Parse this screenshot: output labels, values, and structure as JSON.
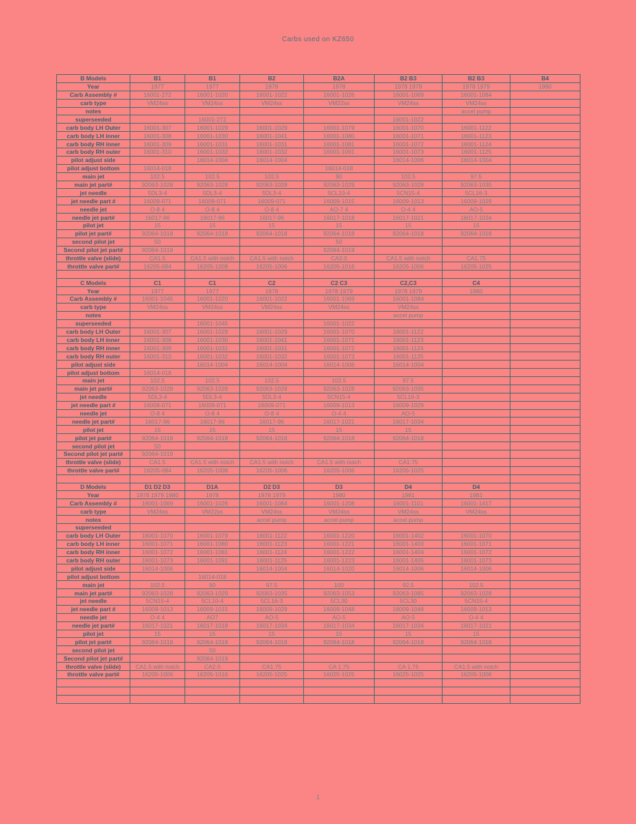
{
  "page": {
    "title": "Carbs used on KZ650",
    "page_number": "1"
  },
  "colors": {
    "page_background": "#fb8585",
    "grid_border": "#3c6c6c",
    "label_ink": "#35606c",
    "value_ink": "#6e8184"
  },
  "sections": [
    {
      "name": "B Models",
      "columns": [
        "B1",
        "B1",
        "B2",
        "B2A",
        "B2 B3",
        "B2 B3",
        "B4"
      ],
      "rows": [
        {
          "label": "Year",
          "values": [
            "1977",
            "1977",
            "1978",
            "1978",
            "1978 1979",
            "1978 1979",
            "1980"
          ]
        },
        {
          "label": "Carb Assembly #",
          "values": [
            "16001-272",
            "16001-1020",
            "16001-1022",
            "16001-1026",
            "16001-1069",
            "16001-1084",
            ""
          ]
        },
        {
          "label": "carb type",
          "values": [
            "VM24ss",
            "VM24ss",
            "VM24ss",
            "VM22ss",
            "VM24ss",
            "VM24ss",
            ""
          ]
        },
        {
          "label": "notes",
          "values": [
            "",
            "",
            "",
            "",
            "",
            "accel pump",
            ""
          ]
        },
        {
          "label": "superseeded",
          "values": [
            "",
            "16001-272",
            "",
            "",
            "16001-1022",
            "",
            ""
          ]
        },
        {
          "label": "carb body LH Outer",
          "values": [
            "16001-307",
            "16001-1029",
            "16001-1029",
            "16001-1079",
            "16001-1070",
            "16001-1122",
            ""
          ]
        },
        {
          "label": "carb body LH inner",
          "values": [
            "16001-308",
            "16001-1030",
            "16001-1041",
            "16001-1080",
            "16001-1071",
            "16001-1123",
            ""
          ]
        },
        {
          "label": "carb body RH inner",
          "values": [
            "16001-309",
            "16001-1031",
            "16001-1031",
            "16001-1081",
            "16001-1072",
            "16001-1124",
            ""
          ]
        },
        {
          "label": "carb body RH outer",
          "values": [
            "16001-310",
            "16001-1032",
            "16001-1032",
            "16001-1091",
            "16001-1073",
            "16001-1125",
            ""
          ]
        },
        {
          "label": "pilot adjust side",
          "values": [
            "",
            "16014-1004",
            "16014-1004",
            "",
            "16014-1006",
            "16014-1004",
            ""
          ]
        },
        {
          "label": "pilot adjust bottom",
          "values": [
            "16014-018",
            "",
            "",
            "16014-018",
            "",
            "",
            ""
          ]
        },
        {
          "label": "main jet",
          "values": [
            "102.5",
            "102.5",
            "102.5",
            "90",
            "102.5",
            "97.5",
            ""
          ]
        },
        {
          "label": "main jet part#",
          "values": [
            "92063-1028",
            "92063-1028",
            "92063-1028",
            "92063-1029",
            "92063-1028",
            "92063-1035",
            ""
          ]
        },
        {
          "label": "jet needle",
          "values": [
            "5DL3-4",
            "5DL3-4",
            "5DL3-4",
            "5CL10-4",
            "5CN15-4",
            "5CL16-3",
            ""
          ]
        },
        {
          "label": "jet needle part #",
          "values": [
            "16009-071",
            "16009-071",
            "16009-071",
            "16009-1015",
            "16009-1013",
            "16009-1029",
            ""
          ]
        },
        {
          "label": "needle jet",
          "values": [
            "O-8 4",
            "O-8 4",
            "O-8 4",
            "AO-7 4",
            "O-4 4",
            "AO-5",
            ""
          ]
        },
        {
          "label": "needle jet part#",
          "values": [
            "16017-96",
            "16017-96",
            "16017-96",
            "16017-1018",
            "16017-1021",
            "16017-1034",
            ""
          ]
        },
        {
          "label": "pilot jet",
          "values": [
            "15",
            "15",
            "15",
            "15",
            "15",
            "15",
            ""
          ]
        },
        {
          "label": "pilot jet part#",
          "values": [
            "92064-1018",
            "92064-1018",
            "92064-1018",
            "92064-1018",
            "92064-1018",
            "92064-1018",
            ""
          ]
        },
        {
          "label": "second pilot jet",
          "values": [
            "50",
            "",
            "",
            "50",
            "",
            "",
            ""
          ]
        },
        {
          "label": "Second pilot jet part#",
          "values": [
            "92064-1019",
            "",
            "",
            "92064-1019",
            "",
            "",
            ""
          ]
        },
        {
          "label": "throttle valve (slide)",
          "values": [
            "CA1.5",
            "CA1.5 with notch",
            "CA1.5 with notch",
            "CA2.0",
            "CA1.5 with notch",
            "CA1.75",
            ""
          ]
        },
        {
          "label": "throttle valve part#",
          "values": [
            "16205-084",
            "16205-1008",
            "16205-1006",
            "16205-1016",
            "16205-1006",
            "16205-1025",
            ""
          ]
        }
      ]
    },
    {
      "name": "C Models",
      "columns": [
        "C1",
        "C1",
        "C2",
        "C2 C3",
        "C2,C3",
        "C4",
        ""
      ],
      "rows": [
        {
          "label": "Year",
          "values": [
            "1977",
            "1977",
            "1978",
            "1978 1979",
            "1978 1979",
            "1980",
            ""
          ]
        },
        {
          "label": "Carb Assembly #",
          "values": [
            "16001-1045",
            "16001-1020",
            "16001-1022",
            "16001-1069",
            "16001-1084",
            "",
            ""
          ]
        },
        {
          "label": "carb type",
          "values": [
            "VM24ss",
            "VM24ss",
            "VM24ss",
            "VM24ss",
            "VM24ss",
            "",
            ""
          ]
        },
        {
          "label": "notes",
          "values": [
            "",
            "",
            "",
            "",
            "accel pump",
            "",
            ""
          ]
        },
        {
          "label": "superseeded",
          "values": [
            "",
            "16001-1045",
            "",
            "16001-1022",
            "",
            "",
            ""
          ]
        },
        {
          "label": "carb body LH Outer",
          "values": [
            "16001-307",
            "16001-1029",
            "16001-1029",
            "16001-1070",
            "16001-1122",
            "",
            ""
          ]
        },
        {
          "label": "carb body LH inner",
          "values": [
            "16001-308",
            "16001-1030",
            "16001-1041",
            "16001-1071",
            "16001-1123",
            "",
            ""
          ]
        },
        {
          "label": "carb body RH inner",
          "values": [
            "16001-309",
            "16001-1031",
            "16001-1031",
            "16001-1072",
            "16001-1124",
            "",
            ""
          ]
        },
        {
          "label": "carb body RH outer",
          "values": [
            "16001-310",
            "16001-1032",
            "16001-1032",
            "16001-1073",
            "16001-1125",
            "",
            ""
          ]
        },
        {
          "label": "pilot adjust side",
          "values": [
            "",
            "16014-1004",
            "16014-1004",
            "16014-1006",
            "16014-1004",
            "",
            ""
          ]
        },
        {
          "label": "pilot adjust bottom",
          "values": [
            "16014-018",
            "",
            "",
            "",
            "",
            "",
            ""
          ]
        },
        {
          "label": "main jet",
          "values": [
            "102.5",
            "102.5",
            "102.5",
            "102.5",
            "97.5",
            "",
            ""
          ]
        },
        {
          "label": "main jet part#",
          "values": [
            "92063-1028",
            "92063-1028",
            "92063-1028",
            "92063-1028",
            "92063-1035",
            "",
            ""
          ]
        },
        {
          "label": "jet needle",
          "values": [
            "5DL3-4",
            "5DL3-4",
            "5DL3-4",
            "5CN15-4",
            "5CL16-3",
            "",
            ""
          ]
        },
        {
          "label": "jet needle part #",
          "values": [
            "16009-071",
            "16009-071",
            "16009-071",
            "16009-1013",
            "16009-1029",
            "",
            ""
          ]
        },
        {
          "label": "needle jet",
          "values": [
            "O-8 4",
            "O-8 4",
            "O-8 4",
            "O-4 4",
            "AO-5",
            "",
            ""
          ]
        },
        {
          "label": "needle jet part#",
          "values": [
            "16017-96",
            "16017-96",
            "16017-96",
            "16017-1021",
            "16017-1034",
            "",
            ""
          ]
        },
        {
          "label": "pilot jet",
          "values": [
            "15",
            "15",
            "15",
            "15",
            "15",
            "",
            ""
          ]
        },
        {
          "label": "pilot jet part#",
          "values": [
            "92064-1018",
            "92064-1018",
            "92064-1018",
            "92064-1018",
            "92064-1018",
            "",
            ""
          ]
        },
        {
          "label": "second pilot jet",
          "values": [
            "50",
            "",
            "",
            "",
            "",
            "",
            ""
          ]
        },
        {
          "label": "Second pilot jet part#",
          "values": [
            "92064-1019",
            "",
            "",
            "",
            "",
            "",
            ""
          ]
        },
        {
          "label": "throttle valve (slide)",
          "values": [
            "CA1.5",
            "CA1.5 with notch",
            "CA1.5 with notch",
            "CA1.5 with notch",
            "CA1.75",
            "",
            ""
          ]
        },
        {
          "label": "throttle valve part#",
          "values": [
            "16205-084",
            "16205-1008",
            "16205-1006",
            "16205-1006",
            "16205-1025",
            "",
            ""
          ]
        }
      ]
    },
    {
      "name": "D Models",
      "columns": [
        "D1 D2 D3",
        "D1A",
        "D2 D3",
        "D3",
        "D4",
        "D4",
        ""
      ],
      "rows": [
        {
          "label": "Year",
          "values": [
            "1978 1979 1980",
            "1978",
            "1978 1979",
            "1980",
            "1981",
            "1981",
            ""
          ]
        },
        {
          "label": "Carb Assembly #",
          "values": [
            "16001-1069",
            "16001-1026",
            "16001-1084",
            "16001-1208",
            "16001-1101",
            "16001-1417",
            ""
          ]
        },
        {
          "label": "carb type",
          "values": [
            "VM24ss",
            "VM22ss",
            "VM24ss",
            "VM24ss",
            "VM24ss",
            "VM24ss",
            ""
          ]
        },
        {
          "label": "notes",
          "values": [
            "",
            "",
            "accel pump",
            "accel pump",
            "accel pump",
            "",
            ""
          ]
        },
        {
          "label": "superseeded",
          "values": [
            "",
            "",
            "",
            "",
            "",
            "",
            ""
          ]
        },
        {
          "label": "carb body LH Outer",
          "values": [
            "16001-1070",
            "16001-1079",
            "16001-1122",
            "16001-1220",
            "16001-1402",
            "16001-1070",
            ""
          ]
        },
        {
          "label": "carb body LH inner",
          "values": [
            "16001-1071",
            "16001-1080",
            "16001-1123",
            "16001-1221",
            "16001-1403",
            "16001-1071",
            ""
          ]
        },
        {
          "label": "carb body RH inner",
          "values": [
            "16001-1072",
            "16001-1081",
            "16001-1124",
            "16001-1222",
            "16001-1404",
            "16001-1072",
            ""
          ]
        },
        {
          "label": "carb body RH outer",
          "values": [
            "16001-1073",
            "16001-1091",
            "16001-1125",
            "16001-1223",
            "16001-1405",
            "16001-1073",
            ""
          ]
        },
        {
          "label": "pilot adjust side",
          "values": [
            "16014-1006",
            "",
            "16014-1004",
            "16014-1020",
            "16014-1006",
            "16014-1006",
            ""
          ]
        },
        {
          "label": "pilot adjust bottom",
          "values": [
            "",
            "16014-018",
            "",
            "",
            "",
            "",
            ""
          ]
        },
        {
          "label": "main jet",
          "values": [
            "102.5",
            "90",
            "97.5",
            "100",
            "92.5",
            "102.5",
            ""
          ]
        },
        {
          "label": "main jet part#",
          "values": [
            "92063-1028",
            "92063-1029",
            "92063-1035",
            "92063-1053",
            "92063-1085",
            "92063-1028",
            ""
          ]
        },
        {
          "label": "jet needle",
          "values": [
            "5CN15-4",
            "5CL10-4",
            "5CL16-3",
            "5CL30",
            "5CL30",
            "5CN15-4",
            ""
          ]
        },
        {
          "label": "jet needle part #",
          "values": [
            "16009-1013",
            "16009-1015",
            "16009-1029",
            "16009-1048",
            "16009-1048",
            "16009-1013",
            ""
          ]
        },
        {
          "label": "needle jet",
          "values": [
            "O-4 4",
            "AO7",
            "AO-5",
            "AO-5",
            "AO-5",
            "O-4 4",
            ""
          ]
        },
        {
          "label": "needle jet part#",
          "values": [
            "16017-1021",
            "16017-1018",
            "16017-1034",
            "16017-1034",
            "16017-1034",
            "16017-1021",
            ""
          ]
        },
        {
          "label": "pilot jet",
          "values": [
            "15",
            "15",
            "15",
            "15",
            "15",
            "15",
            ""
          ]
        },
        {
          "label": "pilot jet part#",
          "values": [
            "92064-1018",
            "92064-1018",
            "92064-1018",
            "92064-1018",
            "92064-1018",
            "92064-1018",
            ""
          ]
        },
        {
          "label": "second pilot jet",
          "values": [
            "",
            "50",
            "",
            "",
            "",
            "",
            ""
          ]
        },
        {
          "label": "Second pilot jet part#",
          "values": [
            "",
            "92064-1019",
            "",
            "",
            "",
            "",
            ""
          ]
        },
        {
          "label": "throttle valve (slide)",
          "values": [
            "CA1.5 with notch",
            "CA2.0",
            "CA1.75",
            "CA 1.75",
            "CA 1.75",
            "CA1.5 with notch",
            ""
          ]
        },
        {
          "label": "throttle valve part#",
          "values": [
            "16205-1006",
            "16205-1016",
            "16205-1025",
            "16025-1025",
            "16025-1025",
            "16205-1006",
            ""
          ]
        }
      ]
    }
  ]
}
